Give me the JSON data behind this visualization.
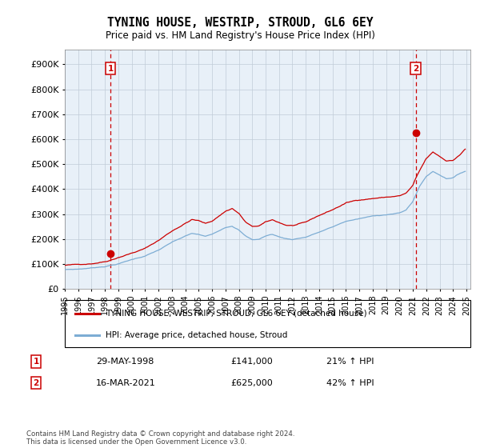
{
  "title": "TYNING HOUSE, WESTRIP, STROUD, GL6 6EY",
  "subtitle": "Price paid vs. HM Land Registry's House Price Index (HPI)",
  "ylabel_ticks": [
    0,
    100000,
    200000,
    300000,
    400000,
    500000,
    600000,
    700000,
    800000,
    900000
  ],
  "ylim": [
    0,
    960000
  ],
  "xlim_left": 1995.0,
  "xlim_right": 2025.3,
  "red_line_color": "#cc0000",
  "blue_line_color": "#7dadd4",
  "plot_bg_color": "#e8f0f8",
  "marker1_date": "29-MAY-1998",
  "marker1_price": 141000,
  "marker1_hpi": "21% ↑ HPI",
  "marker1_x": 1998.41,
  "marker2_date": "16-MAR-2021",
  "marker2_price": 625000,
  "marker2_hpi": "42% ↑ HPI",
  "marker2_x": 2021.21,
  "legend_label_red": "TYNING HOUSE, WESTRIP, STROUD, GL6 6EY (detached house)",
  "legend_label_blue": "HPI: Average price, detached house, Stroud",
  "footer": "Contains HM Land Registry data © Crown copyright and database right 2024.\nThis data is licensed under the Open Government Licence v3.0.",
  "background_color": "#ffffff",
  "grid_color": "#c0ccd8"
}
